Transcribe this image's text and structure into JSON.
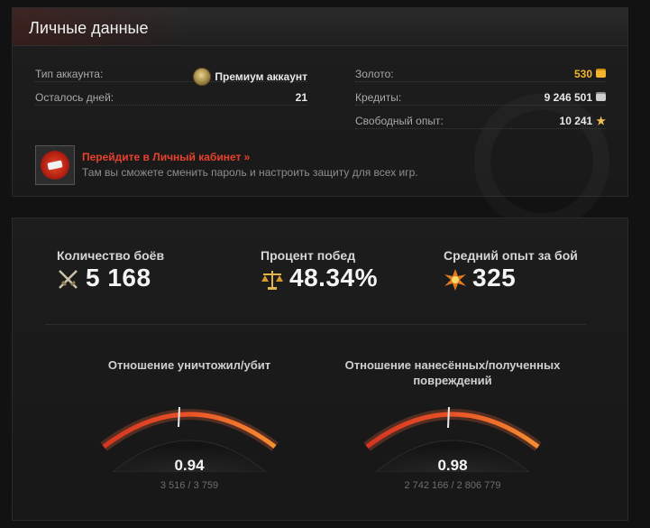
{
  "account": {
    "title": "Личные данные",
    "rows_left": [
      {
        "label": "Тип аккаунта:",
        "value": "Премиум аккаунт",
        "icon": "premium-medal-icon"
      },
      {
        "label": "Осталось дней:",
        "value": "21"
      }
    ],
    "rows_right": [
      {
        "label": "Золото:",
        "value": "530",
        "icon": "gold-coins-icon",
        "value_color": "#f2b52c"
      },
      {
        "label": "Кредиты:",
        "value": "9 246 501",
        "icon": "credits-icon"
      },
      {
        "label": "Свободный опыт:",
        "value": "10 241",
        "icon": "star-icon"
      }
    ],
    "cabinet": {
      "link": "Перейдите в Личный кабинет »",
      "desc": "Там вы сможете сменить пароль и настроить защиту для всех игр.",
      "icon": "wargaming-logo-icon"
    }
  },
  "stats": {
    "battles": {
      "label": "Количество боёв",
      "value": "5 168",
      "icon": "crossed-swords-icon"
    },
    "winrate": {
      "label": "Процент побед",
      "value": "48.34%",
      "icon": "scales-icon"
    },
    "avg_xp": {
      "label": "Средний опыт за бой",
      "value": "325",
      "icon": "explosion-icon"
    }
  },
  "gauges": [
    {
      "title": "Отношение уничтожил/убит",
      "value": "0.94",
      "detail": "3 516 / 3 759",
      "ratio": 0.94
    },
    {
      "title": "Отношение нанесённых/полученных повреждений",
      "value": "0.98",
      "detail": "2 742 166 / 2 806 779",
      "ratio": 0.98
    }
  ],
  "colors": {
    "accent_red": "#e8412b",
    "gold": "#f2b52c",
    "gauge_start": "#c8231a",
    "gauge_end": "#f39a2c"
  }
}
